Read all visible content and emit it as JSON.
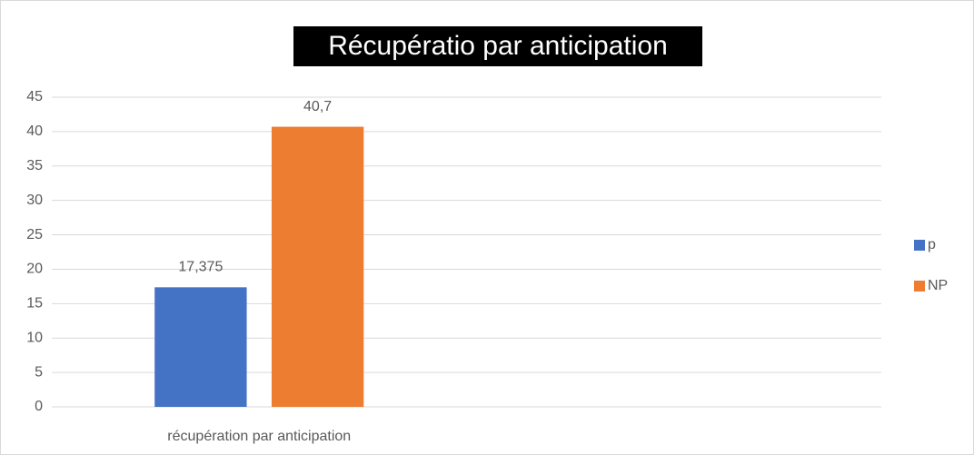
{
  "chart_data": {
    "type": "bar",
    "title": "Récupératio par anticipation",
    "categories": [
      "récupération par anticipation",
      null
    ],
    "series": [
      {
        "name": "p",
        "color": "#4472c4",
        "values": [
          17.375,
          null
        ],
        "value_labels": [
          "17,375",
          null
        ]
      },
      {
        "name": "NP",
        "color": "#ed7d31",
        "values": [
          40.7,
          null
        ],
        "value_labels": [
          "40,7",
          null
        ]
      }
    ],
    "ylim": [
      0,
      45
    ],
    "yticks": [
      0,
      5,
      10,
      15,
      20,
      25,
      30,
      35,
      40,
      45
    ],
    "grid": true,
    "legend": "right"
  }
}
